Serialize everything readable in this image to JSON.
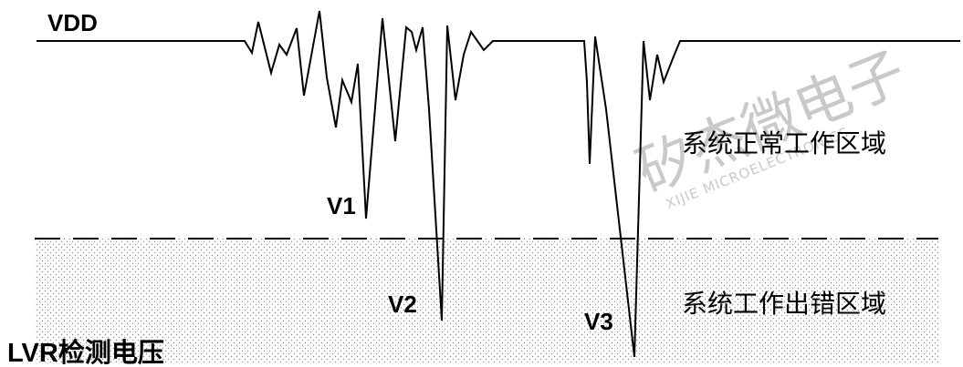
{
  "labels": {
    "vdd": "VDD",
    "v1": "V1",
    "v2": "V2",
    "v3": "V3",
    "lvr": "LVR检测电压",
    "normal_region": "系统正常工作区域",
    "error_region": "系统工作出错区域"
  },
  "watermark": {
    "cn": "矽杰微电子",
    "en": "XIJIE MICROELECTRONICS"
  },
  "colors": {
    "line": "#000000",
    "dot": "#8c8c8c",
    "watermark": "#c9c9c9"
  }
}
